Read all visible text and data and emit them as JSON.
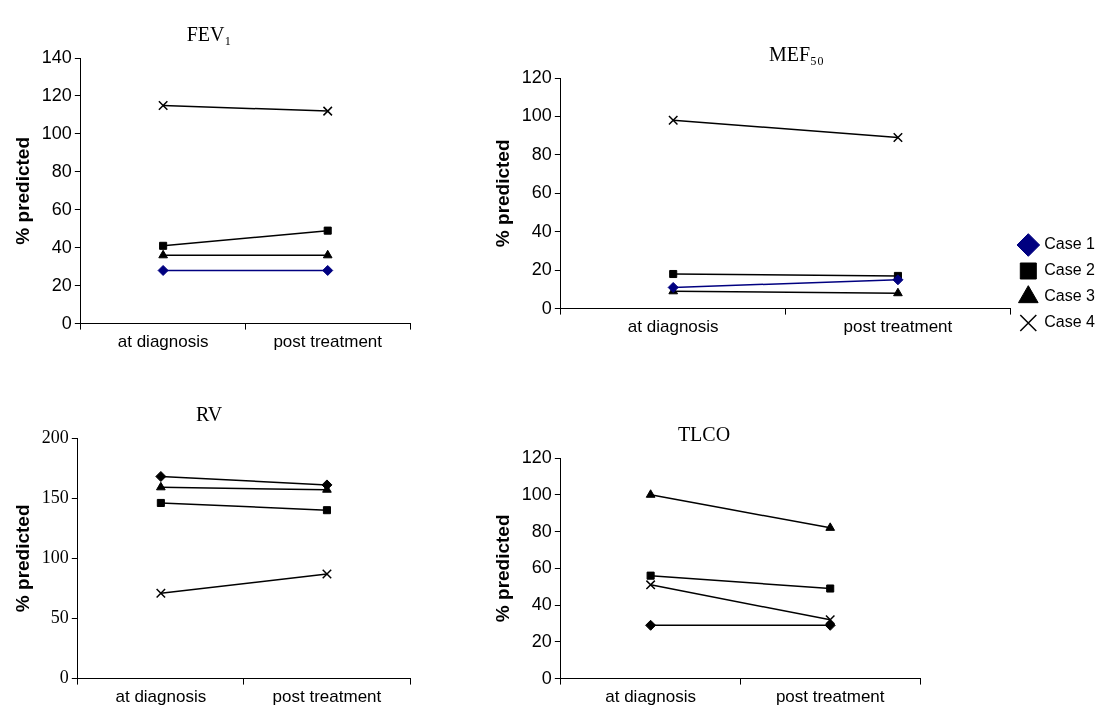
{
  "chart_data": [
    {
      "type": "line",
      "title": "FEV₁",
      "ylabel": "% predicted",
      "categories": [
        "at diagnosis",
        "post treatment"
      ],
      "ylim": [
        0,
        140
      ],
      "yticks": [
        0,
        20,
        40,
        60,
        80,
        100,
        120,
        140
      ],
      "grid": false,
      "legend": false,
      "series": [
        {
          "color": "#000080",
          "marker": "diamond",
          "values": [
            28,
            28
          ]
        },
        {
          "color": "#000000",
          "marker": "square",
          "values": [
            41,
            49
          ]
        },
        {
          "color": "#000000",
          "marker": "triangle",
          "values": [
            36,
            36
          ]
        },
        {
          "color": "#000000",
          "marker": "cross",
          "values": [
            115,
            112
          ]
        }
      ]
    },
    {
      "type": "line",
      "title": "MEF₅₀",
      "ylabel": "% predicted",
      "categories": [
        "at diagnosis",
        "post treatment"
      ],
      "ylim": [
        0,
        120
      ],
      "yticks": [
        0,
        20,
        40,
        60,
        80,
        100,
        120
      ],
      "grid": false,
      "legend": "right",
      "series": [
        {
          "name": "Case 1",
          "color": "#000080",
          "marker": "diamond",
          "values": [
            11,
            15
          ]
        },
        {
          "name": "Case 2",
          "color": "#000000",
          "marker": "square",
          "values": [
            18,
            17
          ]
        },
        {
          "name": "Case 3",
          "color": "#000000",
          "marker": "triangle",
          "values": [
            9,
            8
          ]
        },
        {
          "name": "Case 4",
          "color": "#000000",
          "marker": "cross",
          "values": [
            98,
            89
          ]
        }
      ]
    },
    {
      "type": "line",
      "title": "RV",
      "ylabel": "% predicted",
      "categories": [
        "at diagnosis",
        "post treatment"
      ],
      "ylim": [
        0,
        200
      ],
      "yticks": [
        0,
        50,
        100,
        150,
        200
      ],
      "grid": false,
      "legend": false,
      "series": [
        {
          "color": "#000000",
          "marker": "diamond",
          "values": [
            168,
            161
          ]
        },
        {
          "color": "#000000",
          "marker": "square",
          "values": [
            146,
            140
          ]
        },
        {
          "color": "#000000",
          "marker": "triangle",
          "values": [
            159,
            157
          ]
        },
        {
          "color": "#000000",
          "marker": "cross",
          "values": [
            71,
            87
          ]
        }
      ]
    },
    {
      "type": "line",
      "title": "TLCO",
      "ylabel": "% predicted",
      "categories": [
        "at diagnosis",
        "post treatment"
      ],
      "ylim": [
        0,
        120
      ],
      "yticks": [
        0,
        20,
        40,
        60,
        80,
        100,
        120
      ],
      "grid": false,
      "legend": false,
      "series": [
        {
          "color": "#000000",
          "marker": "diamond",
          "values": [
            29,
            29
          ]
        },
        {
          "color": "#000000",
          "marker": "square",
          "values": [
            56,
            49
          ]
        },
        {
          "color": "#000000",
          "marker": "triangle",
          "values": [
            100,
            82
          ]
        },
        {
          "color": "#000000",
          "marker": "cross",
          "values": [
            51,
            32
          ]
        }
      ]
    }
  ]
}
